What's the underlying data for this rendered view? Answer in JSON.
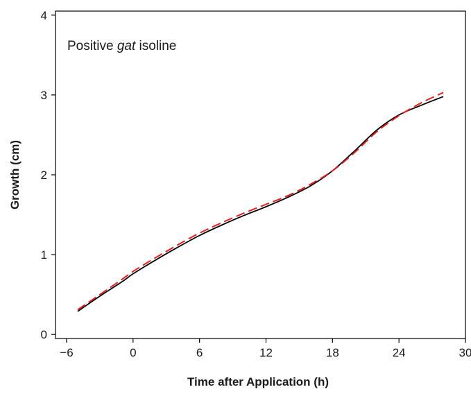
{
  "chart_data": {
    "type": "line",
    "title": "",
    "annotation": {
      "prefix": "Positive ",
      "italic": "gat",
      "suffix": " isoline"
    },
    "xlabel": "Time after Application (h)",
    "ylabel": "Growth  (cm)",
    "xlim": [
      -7,
      30
    ],
    "ylim": [
      -0.05,
      4.05
    ],
    "xticks": [
      -6,
      0,
      6,
      12,
      18,
      24,
      30
    ],
    "xtick_labels": [
      "−6",
      "0",
      "6",
      "12",
      "18",
      "24",
      "30"
    ],
    "yticks": [
      0,
      1,
      2,
      3,
      4
    ],
    "ytick_labels": [
      "0",
      "1",
      "2",
      "3",
      "4"
    ],
    "grid": false,
    "legend": "none",
    "series": [
      {
        "color": "#000000",
        "style": "solid",
        "x": [
          -5,
          -3,
          -1,
          0,
          2,
          4,
          6,
          8,
          10,
          12,
          14,
          16,
          18,
          20,
          22,
          24,
          26,
          28
        ],
        "y": [
          0.29,
          0.48,
          0.66,
          0.76,
          0.93,
          1.09,
          1.24,
          1.37,
          1.49,
          1.6,
          1.72,
          1.86,
          2.05,
          2.3,
          2.56,
          2.75,
          2.87,
          2.98
        ]
      },
      {
        "color": "#e02020",
        "style": "dashed",
        "x": [
          -5,
          -3,
          -1,
          0,
          2,
          4,
          6,
          8,
          10,
          12,
          14,
          16,
          18,
          20,
          22,
          24,
          26,
          28
        ],
        "y": [
          0.31,
          0.5,
          0.69,
          0.79,
          0.96,
          1.12,
          1.27,
          1.4,
          1.52,
          1.63,
          1.74,
          1.88,
          2.05,
          2.28,
          2.54,
          2.74,
          2.9,
          3.03
        ]
      }
    ]
  }
}
